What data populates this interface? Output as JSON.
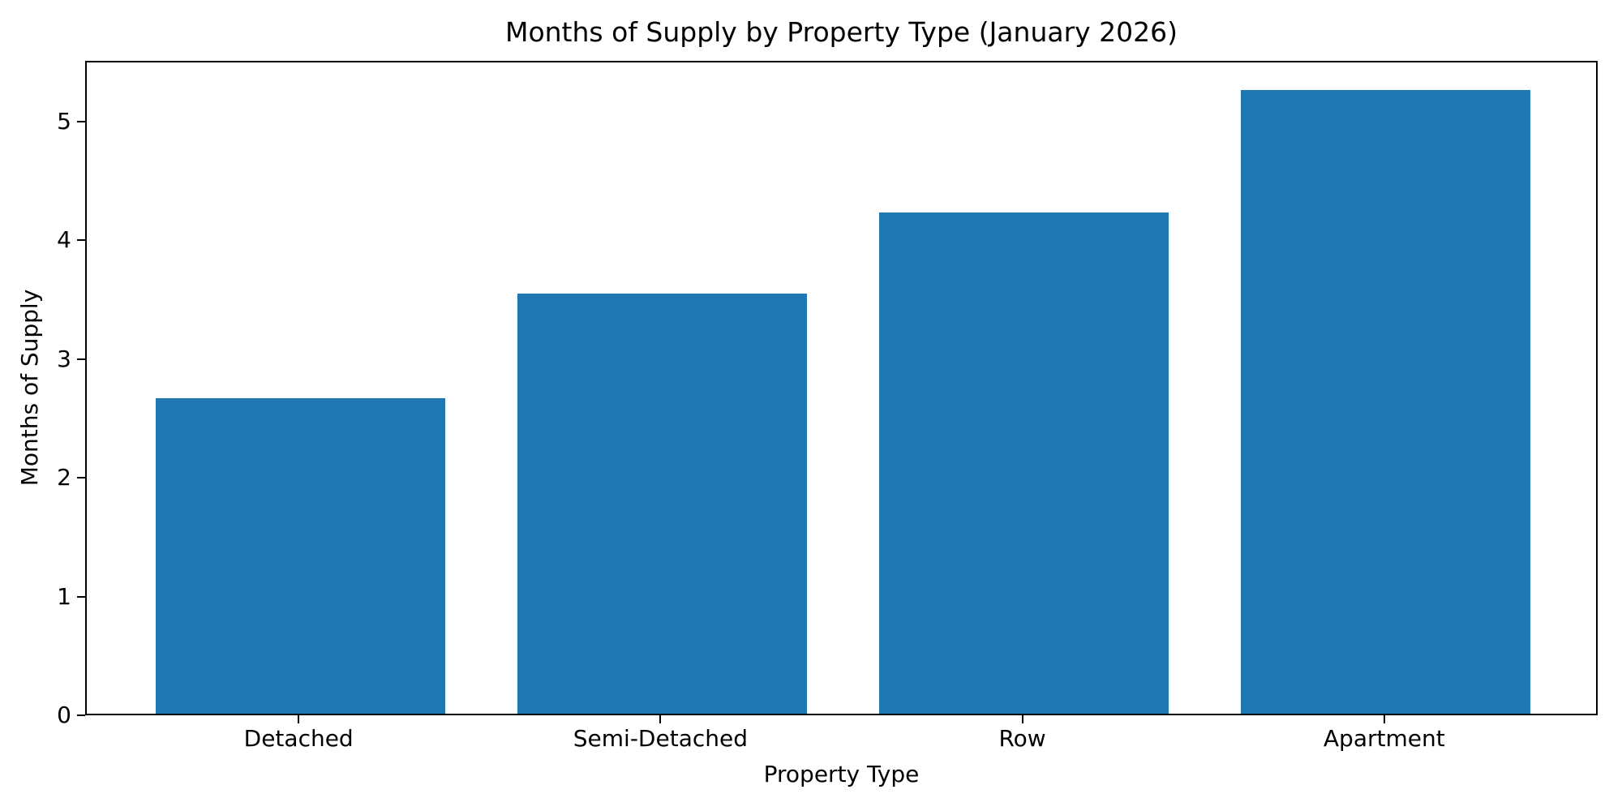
{
  "chart_data": {
    "type": "bar",
    "title": "Months of Supply by Property Type (January 2026)",
    "xlabel": "Property Type",
    "ylabel": "Months of Supply",
    "categories": [
      "Detached",
      "Semi-Detached",
      "Row",
      "Apartment"
    ],
    "values": [
      2.66,
      3.54,
      4.22,
      5.25
    ],
    "yticks": [
      0,
      1,
      2,
      3,
      4,
      5
    ],
    "ylim": [
      0,
      5.5125
    ],
    "xlim": [
      -0.59,
      3.59
    ],
    "bar_width": 0.8,
    "bar_color": "#1f77b4",
    "axis_color": "#000000",
    "background_color": "#ffffff",
    "grid": false,
    "legend_position": "none"
  }
}
